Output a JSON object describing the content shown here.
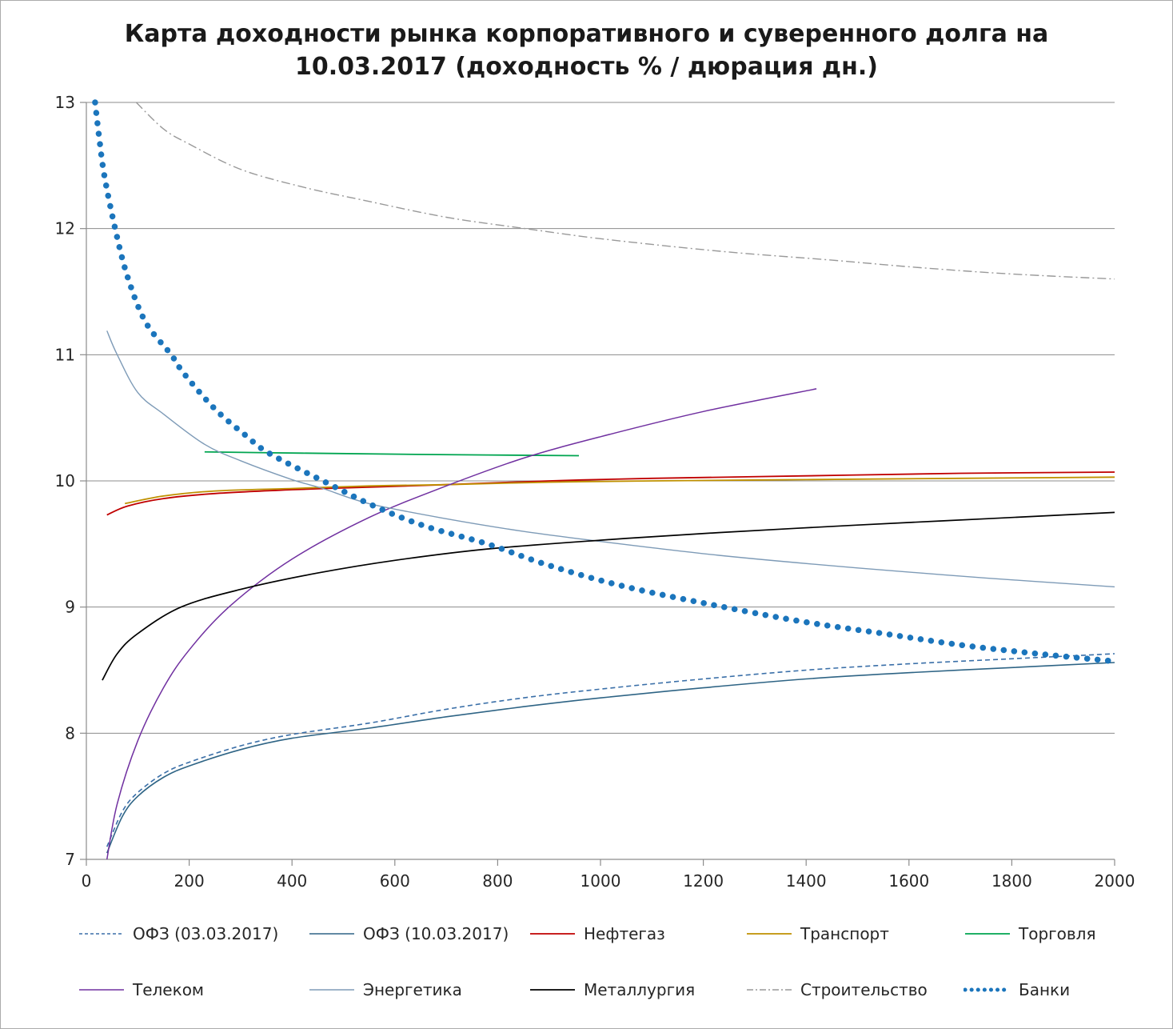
{
  "title": "Карта доходности рынка корпоративного и суверенного долга на 10.03.2017 (доходность % / дюрация дн.)",
  "chart_data": {
    "type": "line",
    "title": "Карта доходности рынка корпоративного и суверенного долга на 10.03.2017 (доходность % / дюрация дн.)",
    "xlabel": "дюрация дн.",
    "ylabel": "доходность %",
    "x_range": [
      0,
      2000
    ],
    "y_range": [
      7,
      13
    ],
    "x_ticks": [
      0,
      200,
      400,
      600,
      800,
      1000,
      1200,
      1400,
      1600,
      1800,
      2000
    ],
    "y_ticks": [
      7,
      8,
      9,
      10,
      11,
      12,
      13
    ],
    "grid": "horizontal",
    "legend_position": "bottom",
    "series": [
      {
        "id": "ofz-03-03-2017",
        "name": "ОФЗ (03.03.2017)",
        "color": "#3a6fa8",
        "dash": "dashed",
        "width": 1.6,
        "legend_row": 0,
        "points": [
          [
            40,
            7.1
          ],
          [
            70,
            7.38
          ],
          [
            100,
            7.53
          ],
          [
            150,
            7.68
          ],
          [
            200,
            7.77
          ],
          [
            300,
            7.9
          ],
          [
            400,
            7.99
          ],
          [
            550,
            8.08
          ],
          [
            700,
            8.19
          ],
          [
            850,
            8.28
          ],
          [
            1000,
            8.35
          ],
          [
            1200,
            8.43
          ],
          [
            1400,
            8.5
          ],
          [
            1600,
            8.55
          ],
          [
            1800,
            8.59
          ],
          [
            2000,
            8.63
          ]
        ]
      },
      {
        "id": "ofz-10-03-2017",
        "name": "ОФЗ (10.03.2017)",
        "color": "#2e6485",
        "dash": "solid",
        "width": 1.6,
        "legend_row": 0,
        "points": [
          [
            40,
            7.05
          ],
          [
            70,
            7.34
          ],
          [
            100,
            7.5
          ],
          [
            150,
            7.65
          ],
          [
            200,
            7.74
          ],
          [
            300,
            7.87
          ],
          [
            400,
            7.96
          ],
          [
            550,
            8.04
          ],
          [
            700,
            8.13
          ],
          [
            850,
            8.21
          ],
          [
            1000,
            8.28
          ],
          [
            1200,
            8.36
          ],
          [
            1400,
            8.43
          ],
          [
            1600,
            8.48
          ],
          [
            1800,
            8.52
          ],
          [
            2000,
            8.56
          ]
        ]
      },
      {
        "id": "neftegaz",
        "name": "Нефтегаз",
        "color": "#c00000",
        "dash": "solid",
        "width": 1.8,
        "legend_row": 0,
        "points": [
          [
            40,
            9.73
          ],
          [
            80,
            9.8
          ],
          [
            150,
            9.86
          ],
          [
            250,
            9.9
          ],
          [
            400,
            9.93
          ],
          [
            550,
            9.95
          ],
          [
            700,
            9.97
          ],
          [
            900,
            10.0
          ],
          [
            1100,
            10.02
          ],
          [
            1400,
            10.04
          ],
          [
            1700,
            10.06
          ],
          [
            2000,
            10.07
          ]
        ]
      },
      {
        "id": "transport",
        "name": "Транспорт",
        "color": "#bf9000",
        "dash": "solid",
        "width": 1.8,
        "legend_row": 0,
        "points": [
          [
            75,
            9.82
          ],
          [
            150,
            9.88
          ],
          [
            250,
            9.92
          ],
          [
            400,
            9.94
          ],
          [
            550,
            9.96
          ],
          [
            700,
            9.97
          ],
          [
            900,
            9.99
          ],
          [
            1100,
            10.0
          ],
          [
            1400,
            10.01
          ],
          [
            1700,
            10.02
          ],
          [
            2000,
            10.03
          ]
        ]
      },
      {
        "id": "torgovlya",
        "name": "Торговля",
        "color": "#00a550",
        "dash": "solid",
        "width": 1.8,
        "legend_row": 0,
        "points": [
          [
            230,
            10.23
          ],
          [
            420,
            10.22
          ],
          [
            640,
            10.21
          ],
          [
            958,
            10.2
          ]
        ]
      },
      {
        "id": "telekom",
        "name": "Телеком",
        "color": "#7030a0",
        "dash": "solid",
        "width": 1.5,
        "legend_row": 1,
        "points": [
          [
            40,
            7.0
          ],
          [
            60,
            7.44
          ],
          [
            100,
            7.94
          ],
          [
            150,
            8.36
          ],
          [
            200,
            8.66
          ],
          [
            280,
            9.01
          ],
          [
            400,
            9.38
          ],
          [
            550,
            9.71
          ],
          [
            700,
            9.96
          ],
          [
            850,
            10.18
          ],
          [
            1000,
            10.35
          ],
          [
            1200,
            10.55
          ],
          [
            1420,
            10.73
          ]
        ]
      },
      {
        "id": "energetika",
        "name": "Энергетика",
        "color": "#7e9bb7",
        "dash": "solid",
        "width": 1.4,
        "legend_row": 1,
        "points": [
          [
            40,
            11.19
          ],
          [
            60,
            11.0
          ],
          [
            100,
            10.7
          ],
          [
            150,
            10.53
          ],
          [
            230,
            10.29
          ],
          [
            300,
            10.16
          ],
          [
            400,
            10.01
          ],
          [
            460,
            9.94
          ],
          [
            550,
            9.82
          ],
          [
            700,
            9.7
          ],
          [
            850,
            9.6
          ],
          [
            1000,
            9.52
          ],
          [
            1230,
            9.41
          ],
          [
            1500,
            9.31
          ],
          [
            1750,
            9.23
          ],
          [
            2000,
            9.16
          ]
        ]
      },
      {
        "id": "metallurgiya",
        "name": "Металлургия",
        "color": "#000000",
        "dash": "solid",
        "width": 1.7,
        "legend_row": 1,
        "points": [
          [
            31,
            8.42
          ],
          [
            60,
            8.63
          ],
          [
            100,
            8.79
          ],
          [
            184,
            9.0
          ],
          [
            300,
            9.14
          ],
          [
            450,
            9.27
          ],
          [
            600,
            9.37
          ],
          [
            780,
            9.46
          ],
          [
            1000,
            9.53
          ],
          [
            1230,
            9.59
          ],
          [
            1500,
            9.65
          ],
          [
            1750,
            9.7
          ],
          [
            2000,
            9.75
          ]
        ]
      },
      {
        "id": "stroitelstvo",
        "name": "Строительство",
        "color": "#999999",
        "dash": "dashdot",
        "width": 1.4,
        "legend_row": 1,
        "points": [
          [
            97,
            13.0
          ],
          [
            150,
            12.79
          ],
          [
            200,
            12.67
          ],
          [
            300,
            12.47
          ],
          [
            420,
            12.33
          ],
          [
            533,
            12.23
          ],
          [
            700,
            12.09
          ],
          [
            854,
            12.0
          ],
          [
            1000,
            11.92
          ],
          [
            1233,
            11.82
          ],
          [
            1450,
            11.75
          ],
          [
            1622,
            11.69
          ],
          [
            1800,
            11.64
          ],
          [
            2000,
            11.6
          ]
        ]
      },
      {
        "id": "banki",
        "name": "Банки",
        "color": "#1b75bc",
        "dash": "dotted",
        "width": 7.5,
        "legend_row": 1,
        "points": [
          [
            17,
            13.0
          ],
          [
            25,
            12.72
          ],
          [
            35,
            12.42
          ],
          [
            56,
            12.0
          ],
          [
            80,
            11.62
          ],
          [
            115,
            11.26
          ],
          [
            165,
            11.0
          ],
          [
            190,
            10.85
          ],
          [
            250,
            10.57
          ],
          [
            310,
            10.36
          ],
          [
            355,
            10.22
          ],
          [
            460,
            10.0
          ],
          [
            560,
            9.8
          ],
          [
            660,
            9.64
          ],
          [
            780,
            9.5
          ],
          [
            900,
            9.33
          ],
          [
            1050,
            9.16
          ],
          [
            1240,
            9.0
          ],
          [
            1400,
            8.88
          ],
          [
            1550,
            8.79
          ],
          [
            1700,
            8.7
          ],
          [
            1850,
            8.63
          ],
          [
            2000,
            8.57
          ]
        ]
      }
    ]
  }
}
